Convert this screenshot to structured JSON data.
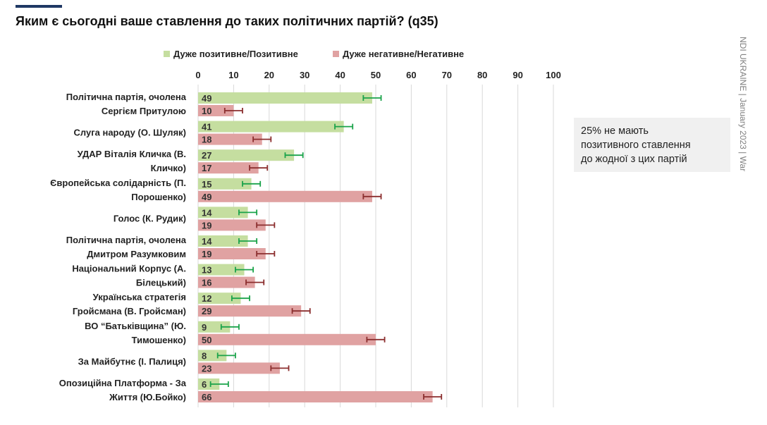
{
  "header": {
    "title": "Яким є сьогодні ваше ставлення до таких політичних партій? (q35)"
  },
  "side_note": "NDI UKRAINE | January 2023 | War",
  "callout": {
    "line1": "25% не мають",
    "line2": "позитивного ставлення",
    "line3": "до жодної з цих партій"
  },
  "colors": {
    "positive": "#c5dea0",
    "negative": "#e0a2a2",
    "positive_err": "#1aa34a",
    "negative_err": "#8b2e2e",
    "grid": "#d9d9d9"
  },
  "chart_data": {
    "type": "bar",
    "orientation": "horizontal",
    "title": "Яким є сьогодні ваше ставлення до таких політичних партій? (q35)",
    "xlim": [
      0,
      100
    ],
    "xticks": [
      0,
      10,
      20,
      30,
      40,
      50,
      60,
      70,
      80,
      90,
      100
    ],
    "grid": true,
    "legend_position": "top",
    "categories": [
      [
        "Політична партія, очолена",
        "Сергієм Притулою"
      ],
      [
        "Слуга народу (О. Шуляк)"
      ],
      [
        "УДАР Віталія Кличка (В.",
        "Кличко)"
      ],
      [
        "Європейська солідарність (П.",
        "Порошенко)"
      ],
      [
        "Голос (К. Рудик)"
      ],
      [
        "Політична партія, очолена",
        "Дмитром Разумковим"
      ],
      [
        "Національний Корпус (А.",
        "Білецький)"
      ],
      [
        "Українська стратегія",
        "Гройсмана (В. Гройсман)"
      ],
      [
        "ВО “Батьківщина” (Ю.",
        "Тимошенко)"
      ],
      [
        "За Майбутнє (І. Палиця)"
      ],
      [
        "Опозиційна Платформа - За",
        "Життя (Ю.Бойко)"
      ]
    ],
    "series": [
      {
        "name": "Дуже позитивне/Позитивне",
        "values": [
          49,
          41,
          27,
          15,
          14,
          14,
          13,
          12,
          9,
          8,
          6
        ],
        "error": 2.5
      },
      {
        "name": "Дуже негативне/Негативне",
        "values": [
          10,
          18,
          17,
          49,
          19,
          19,
          16,
          29,
          50,
          23,
          66
        ],
        "error": 2.5
      }
    ]
  }
}
